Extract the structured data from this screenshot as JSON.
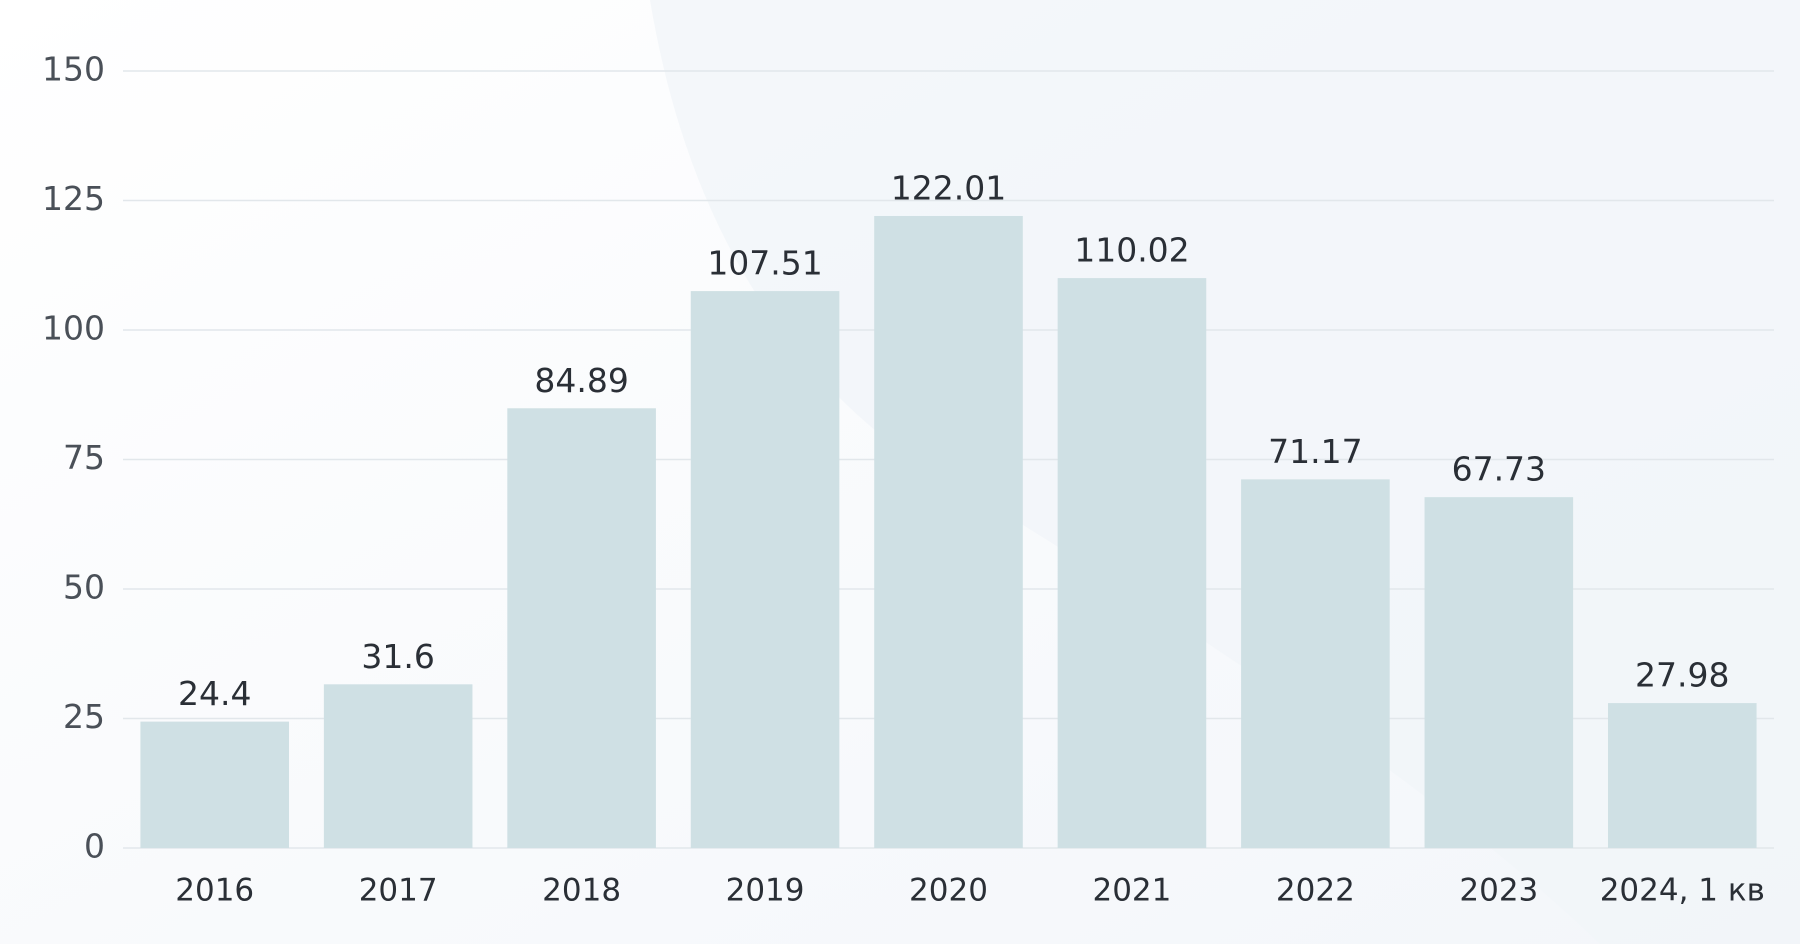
{
  "chart_data": {
    "type": "bar",
    "categories": [
      "2016",
      "2017",
      "2018",
      "2019",
      "2020",
      "2021",
      "2022",
      "2023",
      "2024, 1 кв"
    ],
    "values": [
      24.4,
      31.6,
      84.89,
      107.51,
      122.01,
      110.02,
      71.17,
      67.73,
      27.98
    ],
    "color": "#cfe0e4",
    "ylim": [
      0,
      150
    ],
    "yticks": [
      0,
      25,
      50,
      75,
      100,
      125,
      150
    ],
    "grid": true
  }
}
